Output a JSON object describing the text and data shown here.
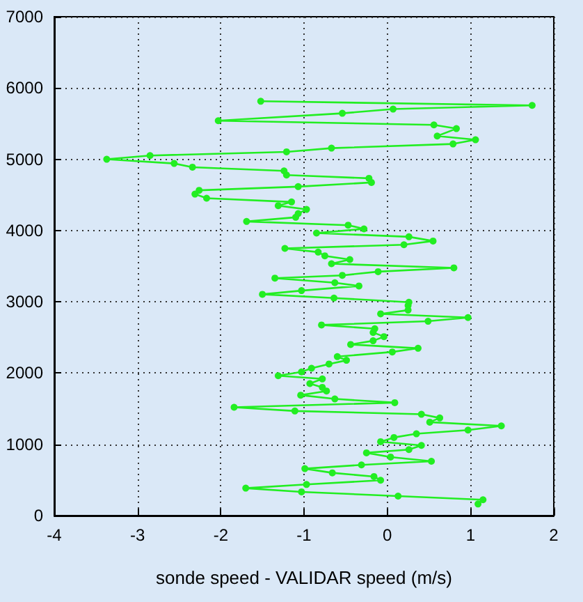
{
  "chart_data": {
    "type": "line",
    "xlabel": "sonde speed - VALIDAR speed (m/s)",
    "x": [
      1.09,
      1.15,
      0.13,
      -1.03,
      -1.7,
      -0.97,
      -0.08,
      -0.16,
      -0.66,
      -0.99,
      -0.31,
      0.53,
      0.04,
      -0.25,
      0.26,
      0.41,
      -0.08,
      0.08,
      0.35,
      0.97,
      1.37,
      0.51,
      0.63,
      0.41,
      -1.11,
      -1.84,
      0.09,
      -0.63,
      -1.04,
      -0.73,
      -0.78,
      -0.93,
      -0.78,
      -1.31,
      -1.03,
      -0.91,
      -0.7,
      -0.49,
      -0.6,
      0.06,
      0.37,
      -0.44,
      -0.17,
      -0.04,
      -0.17,
      -0.15,
      -0.79,
      0.49,
      0.97,
      -0.08,
      0.25,
      0.25,
      0.26,
      -0.64,
      -1.5,
      -1.03,
      -0.34,
      -0.63,
      -1.35,
      -0.54,
      -0.11,
      0.8,
      -0.67,
      -0.45,
      -0.75,
      -0.83,
      -1.23,
      0.2,
      0.55,
      0.26,
      -0.85,
      -0.28,
      -0.47,
      -1.69,
      -1.1,
      -1.07,
      -0.97,
      -1.31,
      -1.15,
      -2.17,
      -2.31,
      -2.26,
      -1.07,
      -0.19,
      -0.22,
      -1.21,
      -1.24,
      -2.34,
      -2.56,
      -3.37,
      -2.85,
      -1.21,
      -0.67,
      0.79,
      1.06,
      0.6,
      0.83,
      0.56,
      -2.03,
      -0.54,
      0.07,
      1.74,
      -1.52
    ],
    "values": [
      163,
      222,
      274,
      333,
      385,
      437,
      496,
      548,
      600,
      659,
      711,
      763,
      822,
      881,
      926,
      985,
      1037,
      1096,
      1148,
      1200,
      1259,
      1311,
      1370,
      1422,
      1468,
      1520,
      1585,
      1637,
      1690,
      1748,
      1800,
      1853,
      1918,
      1963,
      2016,
      2068,
      2127,
      2179,
      2231,
      2296,
      2348,
      2401,
      2453,
      2511,
      2570,
      2622,
      2675,
      2727,
      2779,
      2831,
      2883,
      2948,
      2994,
      3053,
      3105,
      3157,
      3222,
      3268,
      3332,
      3371,
      3423,
      3476,
      3534,
      3593,
      3645,
      3697,
      3749,
      3801,
      3853,
      3912,
      3964,
      4023,
      4075,
      4127,
      4186,
      4238,
      4296,
      4349,
      4401,
      4453,
      4511,
      4564,
      4616,
      4674,
      4733,
      4779,
      4837,
      4889,
      4941,
      5000,
      5052,
      5104,
      5156,
      5215,
      5274,
      5326,
      5430,
      5482,
      5541,
      5645,
      5704,
      5756,
      5814
    ],
    "color": "#22ee22",
    "marker": "circle",
    "line_style": "solid",
    "grid": true,
    "xlim": [
      -4,
      2
    ],
    "xticks": [
      -4,
      -3,
      -2,
      -1,
      0,
      1,
      2
    ],
    "ylim": [
      0,
      7000
    ],
    "yticks": [
      0,
      1000,
      2000,
      3000,
      4000,
      5000,
      6000,
      7000
    ]
  }
}
